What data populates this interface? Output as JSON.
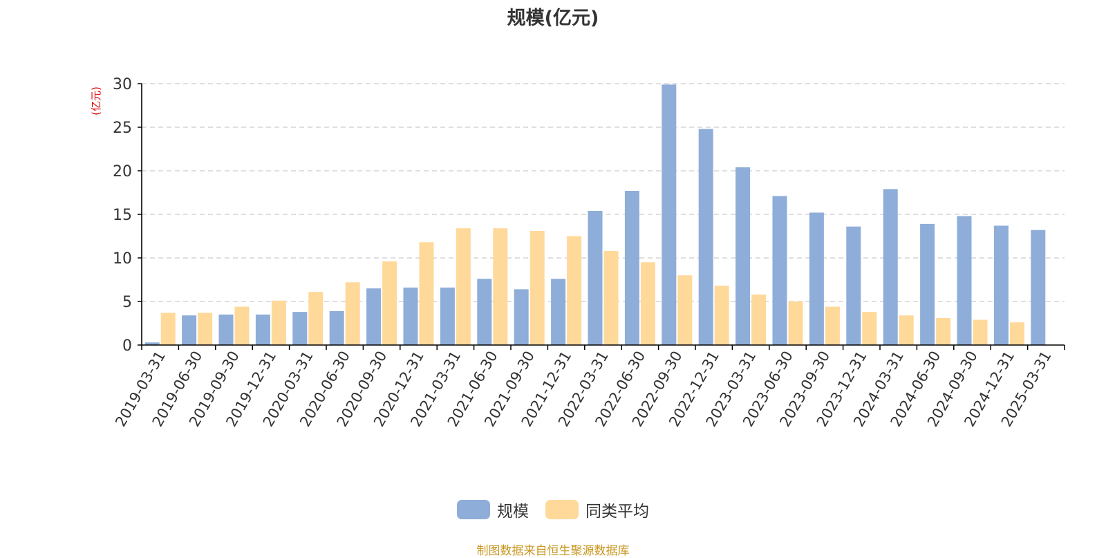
{
  "colors": {
    "series": [
      "#8eadd9",
      "#ffd99a"
    ],
    "axis": "#000000",
    "grid": "#cccccc",
    "tick_text": "#333333",
    "unit_text": "#e00000"
  },
  "chart_data": {
    "type": "bar",
    "title": "规模(亿元)",
    "ylabel": "(亿元)",
    "xlabel": "",
    "ylim": [
      0,
      30
    ],
    "yticks": [
      0,
      5,
      10,
      15,
      20,
      25,
      30
    ],
    "grid": true,
    "legend_position": "bottom",
    "categories": [
      "2019-03-31",
      "2019-06-30",
      "2019-09-30",
      "2019-12-31",
      "2020-03-31",
      "2020-06-30",
      "2020-09-30",
      "2020-12-31",
      "2021-03-31",
      "2021-06-30",
      "2021-09-30",
      "2021-12-31",
      "2022-03-31",
      "2022-06-30",
      "2022-09-30",
      "2022-12-31",
      "2023-03-31",
      "2023-06-30",
      "2023-09-30",
      "2023-12-31",
      "2024-03-31",
      "2024-06-30",
      "2024-09-30",
      "2024-12-31",
      "2025-03-31"
    ],
    "series": [
      {
        "name": "规模",
        "values": [
          0.3,
          3.4,
          3.5,
          3.5,
          3.8,
          3.9,
          6.5,
          6.6,
          6.6,
          7.6,
          6.4,
          7.6,
          15.4,
          17.7,
          29.9,
          24.8,
          20.4,
          17.1,
          15.2,
          13.6,
          17.9,
          13.9,
          14.8,
          13.7,
          13.2
        ]
      },
      {
        "name": "同类平均",
        "values": [
          3.7,
          3.7,
          4.4,
          5.1,
          6.1,
          7.2,
          9.6,
          11.8,
          13.4,
          13.4,
          13.1,
          12.5,
          10.8,
          9.5,
          8.0,
          6.8,
          5.8,
          5.0,
          4.4,
          3.8,
          3.4,
          3.1,
          2.9,
          2.6,
          null
        ]
      }
    ]
  },
  "footer": {
    "source": "制图数据来自恒生聚源数据库"
  }
}
